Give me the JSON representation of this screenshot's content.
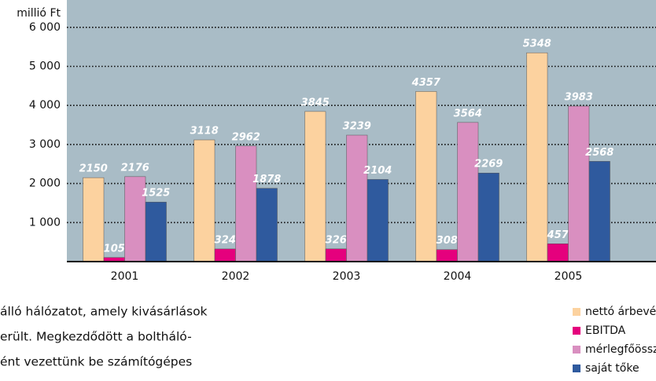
{
  "chart_data": {
    "type": "bar",
    "y_axis_label": "millió Ft",
    "categories": [
      "2001",
      "2002",
      "2003",
      "2004",
      "2005"
    ],
    "series": [
      {
        "name": "nettó árbevétel",
        "color": "#fcd29f",
        "values": [
          2150,
          3118,
          3845,
          4357,
          5348
        ]
      },
      {
        "name": "EBITDA",
        "color": "#e5007d",
        "values": [
          105,
          324,
          326,
          308,
          457
        ]
      },
      {
        "name": "mérlegfőösszeg",
        "color": "#d98fc0",
        "values": [
          2176,
          2962,
          3239,
          3564,
          3983
        ]
      },
      {
        "name": "saját tőke",
        "color": "#2f5a9e",
        "values": [
          1525,
          1878,
          2104,
          2269,
          2568
        ]
      }
    ],
    "ylim": [
      0,
      6700
    ],
    "yticks": [
      {
        "value": 1000,
        "label": "1 000"
      },
      {
        "value": 2000,
        "label": "2 000"
      },
      {
        "value": 3000,
        "label": "3 000"
      },
      {
        "value": 4000,
        "label": "4 000"
      },
      {
        "value": 5000,
        "label": "5 000"
      },
      {
        "value": 6000,
        "label": "6 000"
      }
    ],
    "grid": true,
    "legend": "bottom-right",
    "background": "#a9bcc6"
  },
  "text_fragments": [
    "álló hálózatot, amely kivásárlások",
    "erült. Megkezdődött a boltháló-",
    "ént vezettünk be számítógépes"
  ]
}
